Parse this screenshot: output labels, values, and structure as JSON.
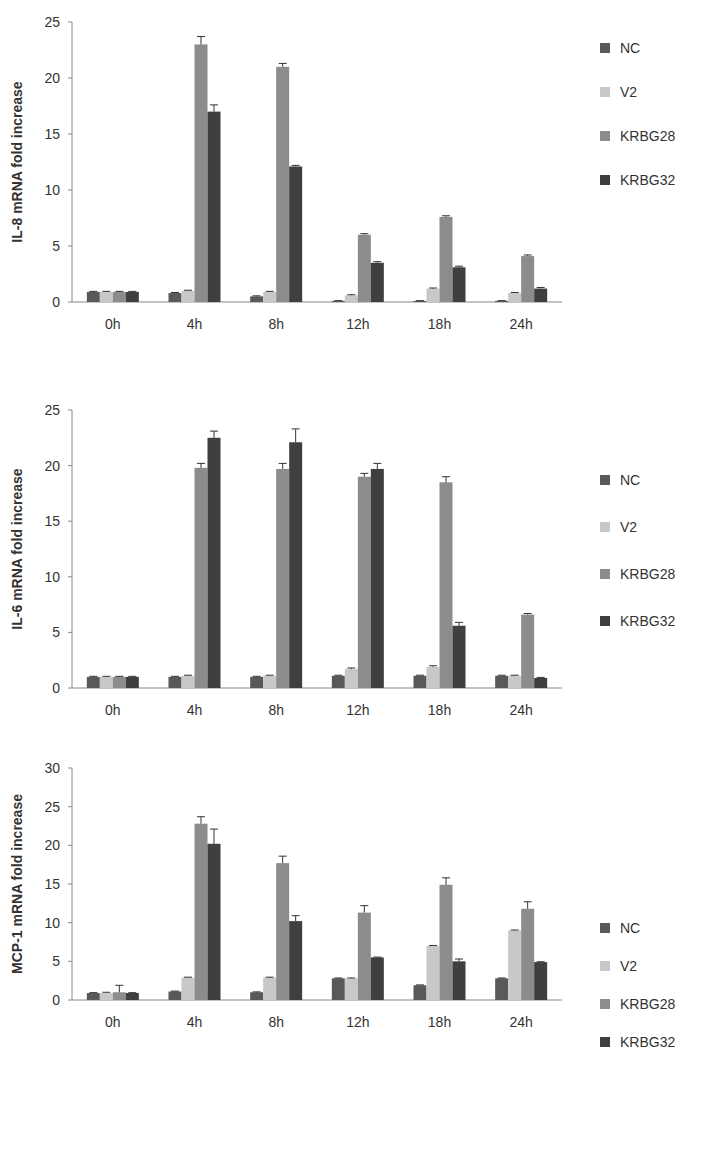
{
  "chart_data": [
    {
      "type": "bar",
      "ylabel": "IL-8 mRNA fold increase",
      "categories": [
        "0h",
        "4h",
        "8h",
        "12h",
        "18h",
        "24h"
      ],
      "series": [
        {
          "name": "NC",
          "color": "#595959",
          "values": [
            0.9,
            0.8,
            0.5,
            0.1,
            0.1,
            0.1
          ],
          "errors": [
            0.05,
            0.05,
            0.05,
            0.02,
            0.02,
            0.02
          ]
        },
        {
          "name": "V2",
          "color": "#c8c8c8",
          "values": [
            0.9,
            1.0,
            0.9,
            0.6,
            1.2,
            0.8
          ],
          "errors": [
            0.05,
            0.05,
            0.05,
            0.05,
            0.05,
            0.05
          ]
        },
        {
          "name": "KRBG28",
          "color": "#8c8c8c",
          "values": [
            0.9,
            23,
            21,
            6,
            7.6,
            4.1
          ],
          "errors": [
            0.05,
            0.7,
            0.3,
            0.1,
            0.1,
            0.1
          ]
        },
        {
          "name": "KRBG32",
          "color": "#3f3f3f",
          "values": [
            0.9,
            17,
            12.1,
            3.5,
            3.1,
            1.2
          ],
          "errors": [
            0.05,
            0.6,
            0.1,
            0.1,
            0.1,
            0.1
          ]
        }
      ],
      "ylim": [
        0,
        25
      ],
      "yticks": [
        0,
        5,
        10,
        15,
        20,
        25
      ],
      "grid": false,
      "legend": "right"
    },
    {
      "type": "bar",
      "ylabel": "IL-6 mRNA fold increase",
      "categories": [
        "0h",
        "4h",
        "8h",
        "12h",
        "18h",
        "24h"
      ],
      "series": [
        {
          "name": "NC",
          "color": "#595959",
          "values": [
            1,
            1.0,
            1.0,
            1.1,
            1.1,
            1.1
          ],
          "errors": [
            0.05,
            0.05,
            0.05,
            0.05,
            0.05,
            0.05
          ]
        },
        {
          "name": "V2",
          "color": "#c8c8c8",
          "values": [
            1,
            1.1,
            1.1,
            1.7,
            1.9,
            1.1
          ],
          "errors": [
            0.05,
            0.05,
            0.05,
            0.1,
            0.1,
            0.05
          ]
        },
        {
          "name": "KRBG28",
          "color": "#8c8c8c",
          "values": [
            1,
            19.8,
            19.7,
            19.0,
            18.5,
            6.6
          ],
          "errors": [
            0.05,
            0.4,
            0.5,
            0.3,
            0.5,
            0.1
          ]
        },
        {
          "name": "KRBG32",
          "color": "#3f3f3f",
          "values": [
            1,
            22.5,
            22.1,
            19.7,
            5.6,
            0.9
          ],
          "errors": [
            0.05,
            0.6,
            1.2,
            0.5,
            0.3,
            0.05
          ]
        }
      ],
      "ylim": [
        0,
        25
      ],
      "yticks": [
        0,
        5,
        10,
        15,
        20,
        25
      ],
      "grid": false,
      "legend": "right"
    },
    {
      "type": "bar",
      "ylabel": "MCP-1 mRNA fold increase",
      "categories": [
        "0h",
        "4h",
        "8h",
        "12h",
        "18h",
        "24h"
      ],
      "series": [
        {
          "name": "NC",
          "color": "#595959",
          "values": [
            0.9,
            1.1,
            1.0,
            2.8,
            1.9,
            2.8
          ],
          "errors": [
            0.05,
            0.05,
            0.05,
            0.05,
            0.05,
            0.05
          ]
        },
        {
          "name": "V2",
          "color": "#c8c8c8",
          "values": [
            0.9,
            2.9,
            2.9,
            2.8,
            7.0,
            9.0
          ],
          "errors": [
            0.1,
            0.05,
            0.05,
            0.05,
            0.05,
            0.05
          ]
        },
        {
          "name": "KRBG28",
          "color": "#8c8c8c",
          "values": [
            1.0,
            22.8,
            17.7,
            11.3,
            14.9,
            11.8
          ],
          "errors": [
            0.9,
            0.9,
            0.9,
            0.9,
            0.9,
            0.9
          ]
        },
        {
          "name": "KRBG32",
          "color": "#3f3f3f",
          "values": [
            0.9,
            20.2,
            10.2,
            5.5,
            5.0,
            4.9
          ],
          "errors": [
            0.05,
            1.9,
            0.7,
            0.05,
            0.3,
            0.05
          ]
        }
      ],
      "ylim": [
        0,
        30
      ],
      "yticks": [
        0,
        5,
        10,
        15,
        20,
        25,
        30
      ],
      "grid": false,
      "legend": "right"
    }
  ]
}
